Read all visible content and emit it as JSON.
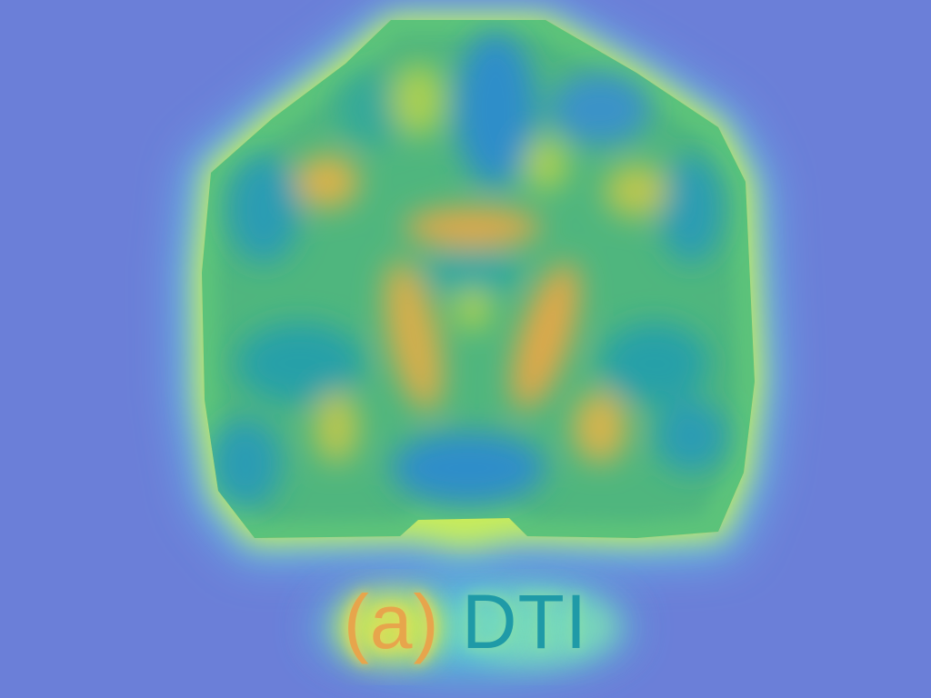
{
  "figure": {
    "caption_marker": "(a)",
    "caption_label": "DTI"
  },
  "colors": {
    "background": "#6b7fd8",
    "halo_outer": "#5fc2e6",
    "halo_inner": "#c8ec5a",
    "rim": "#e8a64a",
    "body": "#5cc37a",
    "cool": "#2f8ec9",
    "warm": "#e8a64a"
  }
}
